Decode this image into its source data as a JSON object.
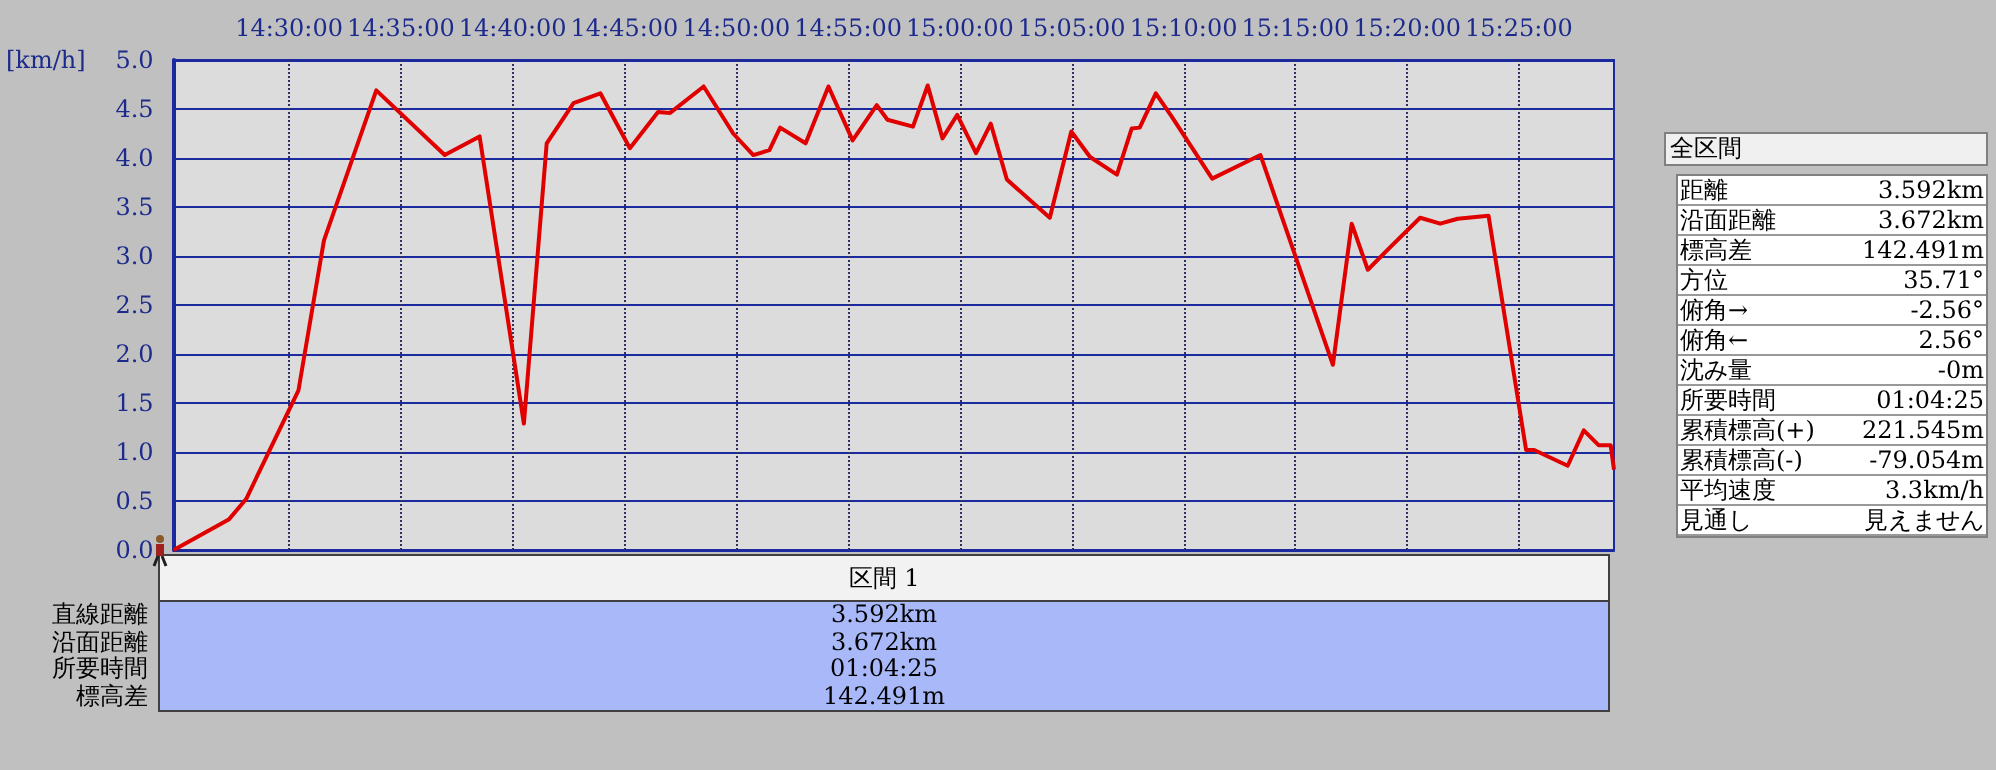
{
  "chart_data": {
    "type": "line",
    "ylabel": "[km/h]",
    "x": [
      14.414,
      14.455,
      14.468,
      14.507,
      14.526,
      14.565,
      14.616,
      14.642,
      14.675,
      14.692,
      14.712,
      14.732,
      14.754,
      14.775,
      14.784,
      14.809,
      14.831,
      14.846,
      14.858,
      14.866,
      14.885,
      14.902,
      14.92,
      14.938,
      14.946,
      14.965,
      14.976,
      14.987,
      14.998,
      15.012,
      15.023,
      15.035,
      15.067,
      15.083,
      15.097,
      15.117,
      15.128,
      15.134,
      15.146,
      15.158,
      15.188,
      15.224,
      15.278,
      15.292,
      15.304,
      15.32,
      15.343,
      15.358,
      15.371,
      15.394,
      15.422,
      15.428,
      15.453,
      15.465,
      15.476,
      15.485,
      15.4875
    ],
    "series": [
      {
        "color": "#e00000",
        "values": [
          0.0,
          0.31,
          0.52,
          1.63,
          3.16,
          4.69,
          4.03,
          4.22,
          1.29,
          4.15,
          4.56,
          4.66,
          4.1,
          4.47,
          4.46,
          4.73,
          4.25,
          4.03,
          4.08,
          4.31,
          4.15,
          4.73,
          4.18,
          4.54,
          4.39,
          4.32,
          4.74,
          4.2,
          4.44,
          4.05,
          4.35,
          3.78,
          3.39,
          4.27,
          4.01,
          3.83,
          4.3,
          4.31,
          4.66,
          4.42,
          3.79,
          4.03,
          1.89,
          3.33,
          2.86,
          3.08,
          3.39,
          3.33,
          3.38,
          3.41,
          1.02,
          1.02,
          0.86,
          1.22,
          1.07,
          1.07,
          0.82
        ]
      }
    ],
    "xlim": [
      14.4139,
      15.4875
    ],
    "xticks": [
      {
        "value": 14.5,
        "label": "14:30:00"
      },
      {
        "value": 14.583333,
        "label": "14:35:00"
      },
      {
        "value": 14.666667,
        "label": "14:40:00"
      },
      {
        "value": 14.75,
        "label": "14:45:00"
      },
      {
        "value": 14.833333,
        "label": "14:50:00"
      },
      {
        "value": 14.916667,
        "label": "14:55:00"
      },
      {
        "value": 15.0,
        "label": "15:00:00"
      },
      {
        "value": 15.083333,
        "label": "15:05:00"
      },
      {
        "value": 15.166667,
        "label": "15:10:00"
      },
      {
        "value": 15.25,
        "label": "15:15:00"
      },
      {
        "value": 15.333333,
        "label": "15:20:00"
      },
      {
        "value": 15.416667,
        "label": "15:25:00"
      }
    ],
    "ylim": [
      0,
      5
    ],
    "yticks": [
      {
        "value": 0,
        "label": "0.0"
      },
      {
        "value": 0.5,
        "label": "0.5"
      },
      {
        "value": 1,
        "label": "1.0"
      },
      {
        "value": 1.5,
        "label": "1.5"
      },
      {
        "value": 2,
        "label": "2.0"
      },
      {
        "value": 2.5,
        "label": "2.5"
      },
      {
        "value": 3,
        "label": "3.0"
      },
      {
        "value": 3.5,
        "label": "3.5"
      },
      {
        "value": 4,
        "label": "4.0"
      },
      {
        "value": 4.5,
        "label": "4.5"
      },
      {
        "value": 5,
        "label": "5.0"
      }
    ],
    "grid": true,
    "marker": "none",
    "line_style": "solid",
    "annotations": [
      "全区間",
      "距離",
      "3.592km",
      "沿面距離",
      "3.672km",
      "標高差",
      "142.491m",
      "方位",
      "35.71°",
      "俯角→",
      "-2.56°",
      "俯角←",
      "2.56°",
      "沈み量",
      "-0m",
      "所要時間",
      "01:04:25",
      "累積標高(+)",
      "221.545m",
      "累積標高(-)",
      "-79.054m",
      "平均速度",
      "3.3km/h",
      "見通し",
      "見えません",
      "区間 1",
      "直線距離",
      "3.592km",
      "沿面距離",
      "3.672km",
      "所要時間",
      "01:04:25",
      "標高差",
      "142.491m"
    ]
  }
}
